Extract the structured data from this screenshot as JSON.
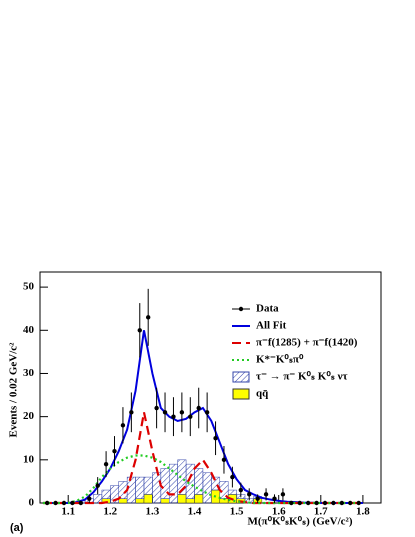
{
  "chart_data": {
    "type": "fit",
    "xlabel": "M(π⁰K⁰ₛK⁰ₛ) (GeV/c²)",
    "ylabel": "Events / 0.02 GeV/c²",
    "panel_label": "(a)",
    "xlim": [
      1.033,
      1.843
    ],
    "ylim": [
      0,
      53.5
    ],
    "xticks": [
      1.1,
      1.2,
      1.3,
      1.4,
      1.5,
      1.6,
      1.7,
      1.8
    ],
    "yticks": [
      0,
      10,
      20,
      30,
      40,
      50
    ],
    "data": {
      "name": "Data",
      "color": "#000000",
      "x": [
        1.05,
        1.07,
        1.09,
        1.11,
        1.13,
        1.15,
        1.17,
        1.19,
        1.21,
        1.23,
        1.25,
        1.27,
        1.29,
        1.31,
        1.33,
        1.35,
        1.37,
        1.39,
        1.41,
        1.43,
        1.45,
        1.47,
        1.49,
        1.51,
        1.53,
        1.55,
        1.57,
        1.59,
        1.61,
        1.63,
        1.65,
        1.67,
        1.69,
        1.71,
        1.73,
        1.75,
        1.77,
        1.79
      ],
      "values": [
        0,
        0,
        0,
        0,
        0,
        1,
        4,
        9,
        12,
        18,
        21,
        40,
        43,
        22,
        21,
        20,
        21,
        20,
        22,
        21,
        15,
        10,
        6,
        3,
        2,
        1,
        2,
        1,
        2,
        0,
        0,
        0,
        0,
        0,
        0,
        0,
        0,
        0
      ],
      "errors": [
        0,
        0,
        0,
        0,
        0,
        1,
        2,
        3,
        3.5,
        4.2,
        4.6,
        6.3,
        6.6,
        4.7,
        4.6,
        4.5,
        4.6,
        4.5,
        4.7,
        4.6,
        3.9,
        3.2,
        2.4,
        1.7,
        1.4,
        1,
        1.4,
        1,
        1.4,
        0,
        0,
        0,
        0,
        0,
        0,
        0,
        0,
        0
      ]
    },
    "curves": {
      "x": [
        1.04,
        1.06,
        1.08,
        1.1,
        1.12,
        1.14,
        1.16,
        1.18,
        1.2,
        1.22,
        1.24,
        1.26,
        1.28,
        1.3,
        1.32,
        1.34,
        1.36,
        1.38,
        1.4,
        1.42,
        1.44,
        1.46,
        1.48,
        1.5,
        1.52,
        1.54,
        1.56,
        1.58,
        1.6,
        1.62,
        1.64,
        1.66,
        1.68,
        1.7,
        1.72,
        1.74,
        1.76,
        1.78,
        1.8
      ],
      "series": [
        {
          "name": "All Fit",
          "color": "#0000dd",
          "dash": "solid",
          "values": [
            0,
            0,
            0,
            0,
            0.2,
            0.8,
            2.5,
            5,
            8,
            12,
            17,
            26,
            40,
            30,
            22,
            20,
            19,
            19.5,
            21,
            22,
            19,
            14,
            9,
            5.5,
            3,
            2,
            1.2,
            0.8,
            0.5,
            0.3,
            0.2,
            0.1,
            0.05,
            0,
            0,
            0,
            0,
            0,
            0
          ]
        },
        {
          "name": "π⁻f(1285) +  π⁻f(1420)",
          "color": "#dd0000",
          "dash": "dashed",
          "values": [
            0,
            0,
            0,
            0,
            0,
            0,
            0,
            0,
            0.3,
            1,
            3,
            10,
            21,
            12,
            4,
            2,
            2,
            4,
            8,
            10,
            7,
            3,
            1.2,
            0.5,
            0.2,
            0,
            0,
            0,
            0,
            0,
            0,
            0,
            0,
            0,
            0,
            0,
            0,
            0,
            0
          ]
        },
        {
          "name": "K*⁻K⁰ₛπ⁰",
          "color": "#22cc22",
          "dash": "dotted",
          "values": [
            0,
            0,
            0,
            0,
            0.5,
            1.5,
            3.5,
            6,
            8,
            9.5,
            10.5,
            11,
            11,
            10.5,
            9.5,
            8,
            6.5,
            5,
            3.8,
            2.7,
            1.8,
            1.2,
            0.7,
            0.4,
            0.2,
            0,
            0,
            0,
            0,
            0,
            0,
            0,
            0,
            0,
            0,
            0,
            0,
            0,
            0
          ]
        }
      ]
    },
    "histograms": {
      "stacked": true,
      "bins": [
        1.04,
        1.06,
        1.08,
        1.1,
        1.12,
        1.14,
        1.16,
        1.18,
        1.2,
        1.22,
        1.24,
        1.26,
        1.28,
        1.3,
        1.32,
        1.34,
        1.36,
        1.38,
        1.4,
        1.42,
        1.44,
        1.46,
        1.48,
        1.5,
        1.52,
        1.54,
        1.56,
        1.58,
        1.6,
        1.62,
        1.64,
        1.66,
        1.68,
        1.7,
        1.72,
        1.74,
        1.76,
        1.78,
        1.8
      ],
      "series": [
        {
          "name": "τ⁻ → π⁻ K⁰ₛ K⁰ₛ ντ",
          "color": "#3344aa",
          "fill": "hatch",
          "values": [
            0,
            0,
            0,
            0,
            0.5,
            1,
            2,
            2,
            4,
            4,
            6,
            5,
            4,
            7,
            7,
            9,
            8,
            8,
            6,
            7,
            3,
            4,
            1,
            1,
            1,
            0.5,
            0,
            0,
            0,
            0,
            0,
            0,
            0,
            0,
            0,
            0,
            0,
            0
          ]
        },
        {
          "name": "qq̄",
          "color": "#ffff00",
          "fill": "solid",
          "values": [
            0,
            0,
            0,
            0,
            0,
            0,
            0,
            1,
            0,
            1,
            0,
            1,
            2,
            0,
            1,
            0,
            2,
            1,
            2,
            0,
            3,
            1,
            2,
            1,
            0,
            1,
            0,
            0,
            0,
            0,
            0,
            0,
            0,
            0,
            0,
            0,
            0,
            0
          ]
        }
      ]
    }
  }
}
